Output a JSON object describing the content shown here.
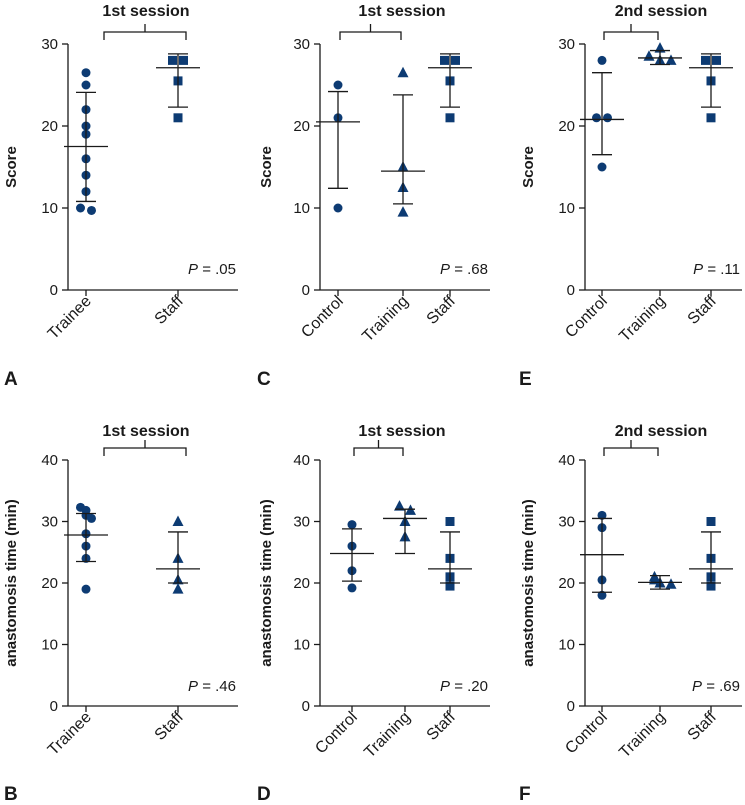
{
  "colors": {
    "marker": "#0d3b73",
    "ink": "#1a1a1a"
  },
  "chart_data": [
    {
      "panel": "A",
      "type": "scatter",
      "title": "1st session",
      "ylabel": "Score",
      "ylim": [
        0,
        30
      ],
      "yticks": [
        0,
        10,
        20,
        30
      ],
      "p_value": ".05",
      "bracket": [
        0,
        1
      ],
      "categories": [
        {
          "label": "Trainee",
          "marker": "circle",
          "values": [
            26.5,
            25,
            22,
            20,
            19,
            16,
            14,
            12,
            10,
            9.7
          ],
          "mean": 17.5,
          "sd_low": 10.8,
          "sd_high": 24.1
        },
        {
          "label": "Staff",
          "marker": "square",
          "values": [
            28,
            28,
            25.5,
            21
          ],
          "mean": 27.1,
          "sd_low": 22.3,
          "sd_high": 28.8
        }
      ]
    },
    {
      "panel": "C",
      "type": "scatter",
      "title": "1st session",
      "ylabel": "Score",
      "ylim": [
        0,
        30
      ],
      "yticks": [
        0,
        10,
        20,
        30
      ],
      "p_value": ".68",
      "bracket": [
        0,
        1
      ],
      "categories": [
        {
          "label": "Control",
          "marker": "circle",
          "values": [
            25,
            21,
            10
          ],
          "mean": 20.5,
          "sd_low": 12.4,
          "sd_high": 24.2
        },
        {
          "label": "Training",
          "marker": "triangle",
          "values": [
            26.5,
            15,
            12.5,
            9.5
          ],
          "mean": 14.5,
          "sd_low": 10.5,
          "sd_high": 23.8
        },
        {
          "label": "Staff",
          "marker": "square",
          "values": [
            28,
            28,
            25.5,
            21
          ],
          "mean": 27.1,
          "sd_low": 22.3,
          "sd_high": 28.8
        }
      ]
    },
    {
      "panel": "E",
      "type": "scatter",
      "title": "2nd session",
      "ylabel": "Score",
      "ylim": [
        0,
        30
      ],
      "yticks": [
        0,
        10,
        20,
        30
      ],
      "p_value": ".11",
      "bracket": [
        0,
        1
      ],
      "categories": [
        {
          "label": "Control",
          "marker": "circle",
          "values": [
            28,
            21,
            21,
            15
          ],
          "mean": 20.8,
          "sd_low": 16.5,
          "sd_high": 26.5
        },
        {
          "label": "Training",
          "marker": "triangle",
          "values": [
            29.5,
            28.5,
            28,
            28
          ],
          "mean": 28.3,
          "sd_low": 27.5,
          "sd_high": 29.2
        },
        {
          "label": "Staff",
          "marker": "square",
          "values": [
            28,
            28,
            25.5,
            21
          ],
          "mean": 27.1,
          "sd_low": 22.3,
          "sd_high": 28.8
        }
      ]
    },
    {
      "panel": "B",
      "type": "scatter",
      "title": "1st session",
      "ylabel": "anastomosis time (min)",
      "ylim": [
        0,
        40
      ],
      "yticks": [
        0,
        10,
        20,
        30,
        40
      ],
      "p_value": ".46",
      "bracket": [
        0,
        1
      ],
      "categories": [
        {
          "label": "Trainee",
          "marker": "circle",
          "values": [
            32.3,
            31.8,
            31,
            30.5,
            28,
            26,
            24,
            19
          ],
          "mean": 27.8,
          "sd_low": 23.5,
          "sd_high": 31.3
        },
        {
          "label": "Staff",
          "marker": "triangle",
          "values": [
            30,
            24,
            20.5,
            19
          ],
          "mean": 22.3,
          "sd_low": 20,
          "sd_high": 28.3
        }
      ]
    },
    {
      "panel": "D",
      "type": "scatter",
      "title": "1st session",
      "ylabel": "anastomosis time (min)",
      "ylim": [
        0,
        40
      ],
      "yticks": [
        0,
        10,
        20,
        30,
        40
      ],
      "p_value": ".20",
      "bracket": [
        0,
        1
      ],
      "categories": [
        {
          "label": "Control",
          "marker": "circle",
          "values": [
            29.5,
            26,
            22,
            19.2
          ],
          "mean": 24.8,
          "sd_low": 20.3,
          "sd_high": 28.8
        },
        {
          "label": "Training",
          "marker": "triangle",
          "values": [
            32.5,
            31.8,
            30,
            27.5
          ],
          "mean": 30.5,
          "sd_low": 24.8,
          "sd_high": 32
        },
        {
          "label": "Staff",
          "marker": "square",
          "values": [
            30,
            24,
            21,
            19.5
          ],
          "mean": 22.3,
          "sd_low": 20,
          "sd_high": 28.3
        }
      ]
    },
    {
      "panel": "F",
      "type": "scatter",
      "title": "2nd session",
      "ylabel": "anastomosis time (min)",
      "ylim": [
        0,
        40
      ],
      "yticks": [
        0,
        10,
        20,
        30,
        40
      ],
      "p_value": ".69",
      "bracket": [
        0,
        1
      ],
      "categories": [
        {
          "label": "Control",
          "marker": "circle",
          "values": [
            31,
            29,
            20.5,
            18
          ],
          "mean": 24.6,
          "sd_low": 18.5,
          "sd_high": 30.5
        },
        {
          "label": "Training",
          "marker": "triangle",
          "values": [
            21,
            20.5,
            20,
            19.8
          ],
          "mean": 20.1,
          "sd_low": 19,
          "sd_high": 21.2
        },
        {
          "label": "Staff",
          "marker": "square",
          "values": [
            30,
            24,
            21,
            19.5
          ],
          "mean": 22.3,
          "sd_low": 20,
          "sd_high": 28.3
        }
      ]
    }
  ]
}
